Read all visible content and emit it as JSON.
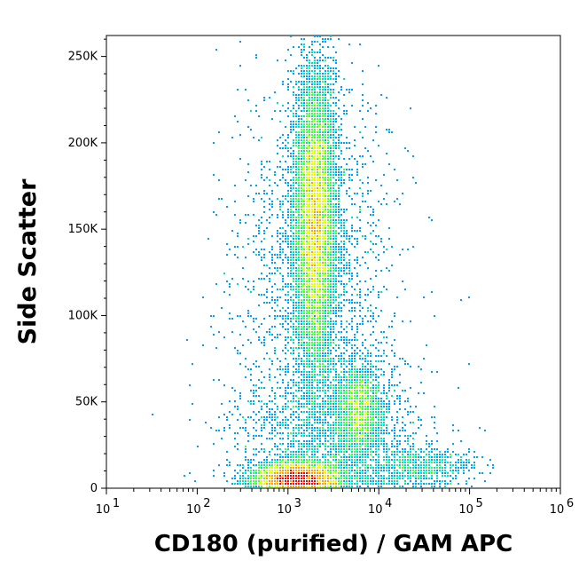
{
  "chart_data": {
    "type": "scatter",
    "subtype": "density-dot-plot",
    "title": "",
    "xlabel": "CD180 (purified) / GAM APC",
    "ylabel": "Side Scatter",
    "x_scale": "log",
    "xlim": [
      10,
      1000000
    ],
    "ylim": [
      0,
      262144
    ],
    "x_major_ticks": [
      {
        "value": 10,
        "base": "10",
        "exp": "1"
      },
      {
        "value": 100,
        "base": "10",
        "exp": "2"
      },
      {
        "value": 1000,
        "base": "10",
        "exp": "3"
      },
      {
        "value": 10000,
        "base": "10",
        "exp": "4"
      },
      {
        "value": 100000,
        "base": "10",
        "exp": "5"
      },
      {
        "value": 1000000,
        "base": "10",
        "exp": "6"
      }
    ],
    "y_major_ticks": [
      {
        "value": 0,
        "label": "0"
      },
      {
        "value": 50000,
        "label": "50K"
      },
      {
        "value": 100000,
        "label": "100K"
      },
      {
        "value": 150000,
        "label": "150K"
      },
      {
        "value": 200000,
        "label": "200K"
      },
      {
        "value": 250000,
        "label": "250K"
      }
    ],
    "grid": false,
    "legend": "none",
    "colormap": [
      "#0000ff",
      "#00a0ff",
      "#00e0c0",
      "#40ff40",
      "#e0ff00",
      "#ffa000",
      "#ff0000"
    ],
    "populations": [
      {
        "x_center": 1300,
        "x_spread_decades": 0.22,
        "y_center": 5000,
        "y_spread": 5000,
        "weight": 0.3
      },
      {
        "x_center": 2000,
        "x_spread_decades": 0.11,
        "y_center": 155000,
        "y_spread": 42000,
        "weight": 0.42
      },
      {
        "x_center": 6000,
        "x_spread_decades": 0.13,
        "y_center": 45000,
        "y_spread": 13000,
        "weight": 0.08
      },
      {
        "x_center": 3000,
        "x_spread_decades": 0.5,
        "y_center": 25000,
        "y_spread": 25000,
        "weight": 0.08
      },
      {
        "x_center": 30000,
        "x_spread_decades": 0.3,
        "y_center": 12000,
        "y_spread": 6000,
        "weight": 0.03
      },
      {
        "x_center": 2000,
        "x_spread_decades": 0.45,
        "y_center": 120000,
        "y_spread": 60000,
        "weight": 0.09
      }
    ]
  }
}
